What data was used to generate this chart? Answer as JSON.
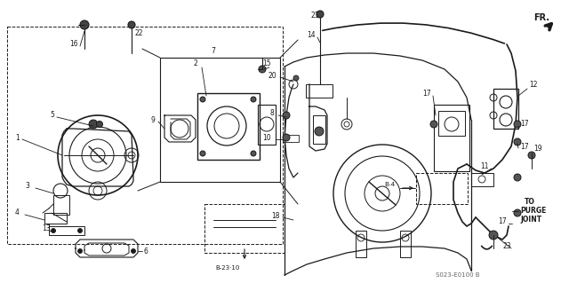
{
  "bg_color": "#ffffff",
  "line_color": "#1a1a1a",
  "fig_width": 6.4,
  "fig_height": 3.19,
  "dpi": 100,
  "bottom_text": "S023-E0100 B",
  "fr_text": "FR.",
  "purge_text1": "TO",
  "purge_text2": "PURGE",
  "purge_text3": "JOINT",
  "b4_text": "B-4",
  "b23_text": "B-23·10"
}
